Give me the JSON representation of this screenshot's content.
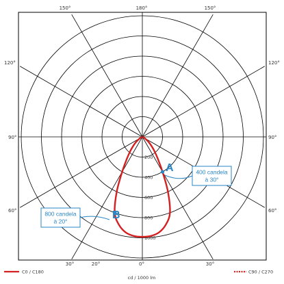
{
  "chart_data": {
    "type": "polar",
    "unit_label": "cd / 1000 lm",
    "rlim": [
      0,
      1200
    ],
    "radial_ticks": [
      200,
      400,
      600,
      800,
      1000
    ],
    "angle_tick_labels": {
      "top": [
        "150°",
        "180°",
        "150°"
      ],
      "left": [
        "120°",
        "90°",
        "60°"
      ],
      "right": [
        "120°",
        "90°",
        "60°"
      ],
      "bottom": [
        "30°",
        "20°",
        "0°",
        "30°"
      ]
    },
    "grid": true,
    "legend": {
      "position": "bottom",
      "items": [
        {
          "label": "C0 / C180",
          "style": "solid",
          "color": "#d42020"
        },
        {
          "label": "C90 / C270",
          "style": "dotted",
          "color": "#d42020"
        }
      ]
    },
    "series": [
      {
        "label": "C0 / C180",
        "color": "#d42020",
        "points": [
          {
            "angle": 0,
            "value": 990
          },
          {
            "angle": 5,
            "value": 985
          },
          {
            "angle": 10,
            "value": 960
          },
          {
            "angle": 15,
            "value": 900
          },
          {
            "angle": 20,
            "value": 800
          },
          {
            "angle": 25,
            "value": 600
          },
          {
            "angle": 30,
            "value": 400
          },
          {
            "angle": 35,
            "value": 270
          },
          {
            "angle": 40,
            "value": 190
          },
          {
            "angle": 45,
            "value": 130
          },
          {
            "angle": 50,
            "value": 85
          },
          {
            "angle": 55,
            "value": 50
          },
          {
            "angle": 60,
            "value": 25
          },
          {
            "angle": 70,
            "value": 5
          },
          {
            "angle": 90,
            "value": 0
          }
        ]
      }
    ],
    "annotations": [
      {
        "point": "A",
        "text_line1": "400 candela",
        "text_line2": "à 30°",
        "angle": 30,
        "value": 400
      },
      {
        "point": "B",
        "text_line1": "800 candela",
        "text_line2": "à 20°",
        "angle": -20,
        "value": 800
      }
    ]
  }
}
